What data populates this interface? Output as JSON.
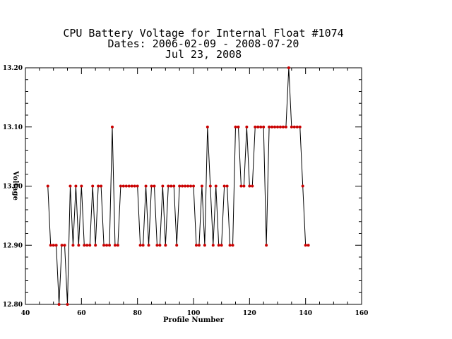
{
  "chart_data": {
    "type": "line",
    "title_lines": [
      "CPU Battery Voltage for Internal Float #1074",
      "Dates:  2006-02-09 -  2008-07-20",
      "Jul 23, 2008"
    ],
    "xlabel": "Profile Number",
    "ylabel": "Voltage",
    "xlim": [
      40,
      160
    ],
    "ylim": [
      12.8,
      13.2
    ],
    "x_ticks": [
      "40",
      "60",
      "80",
      "100",
      "120",
      "140",
      "160"
    ],
    "y_ticks": [
      "12.80",
      "12.90",
      "13.00",
      "13.10",
      "13.20"
    ],
    "grid": false,
    "line_color": "#000000",
    "marker_color": "#cc0000",
    "series": [
      {
        "x": [
          48,
          49,
          50,
          51,
          52,
          53,
          54,
          55,
          56,
          57,
          58,
          59,
          60,
          61,
          62,
          63,
          64,
          65,
          66,
          67,
          68,
          69,
          70,
          71,
          72,
          73,
          74,
          75,
          76,
          77,
          78,
          79,
          80,
          81,
          82,
          83,
          84,
          85,
          86,
          87,
          88,
          89,
          90,
          91,
          92,
          93,
          94,
          95,
          96,
          97,
          98,
          99,
          100,
          101,
          102,
          103,
          104,
          105,
          106,
          107,
          108,
          109,
          110,
          111,
          112,
          113,
          114,
          115,
          116,
          117,
          118,
          119,
          120,
          121,
          122,
          123,
          124,
          125,
          126,
          127,
          128,
          129,
          130,
          131,
          132,
          133,
          134,
          135,
          136,
          137,
          138,
          139,
          140,
          141
        ],
        "y": [
          13.0,
          12.9,
          12.9,
          12.9,
          12.8,
          12.9,
          12.9,
          12.8,
          13.0,
          12.9,
          13.0,
          12.9,
          13.0,
          12.9,
          12.9,
          12.9,
          13.0,
          12.9,
          13.0,
          13.0,
          12.9,
          12.9,
          12.9,
          13.1,
          12.9,
          12.9,
          13.0,
          13.0,
          13.0,
          13.0,
          13.0,
          13.0,
          13.0,
          12.9,
          12.9,
          13.0,
          12.9,
          13.0,
          13.0,
          12.9,
          12.9,
          13.0,
          12.9,
          13.0,
          13.0,
          13.0,
          12.9,
          13.0,
          13.0,
          13.0,
          13.0,
          13.0,
          13.0,
          12.9,
          12.9,
          13.0,
          12.9,
          13.1,
          13.0,
          12.9,
          13.0,
          12.9,
          12.9,
          13.0,
          13.0,
          12.9,
          12.9,
          13.1,
          13.1,
          13.0,
          13.0,
          13.1,
          13.0,
          13.0,
          13.1,
          13.1,
          13.1,
          13.1,
          12.9,
          13.1,
          13.1,
          13.1,
          13.1,
          13.1,
          13.1,
          13.1,
          13.2,
          13.1,
          13.1,
          13.1,
          13.1,
          13.0,
          12.9,
          12.9
        ]
      }
    ]
  }
}
